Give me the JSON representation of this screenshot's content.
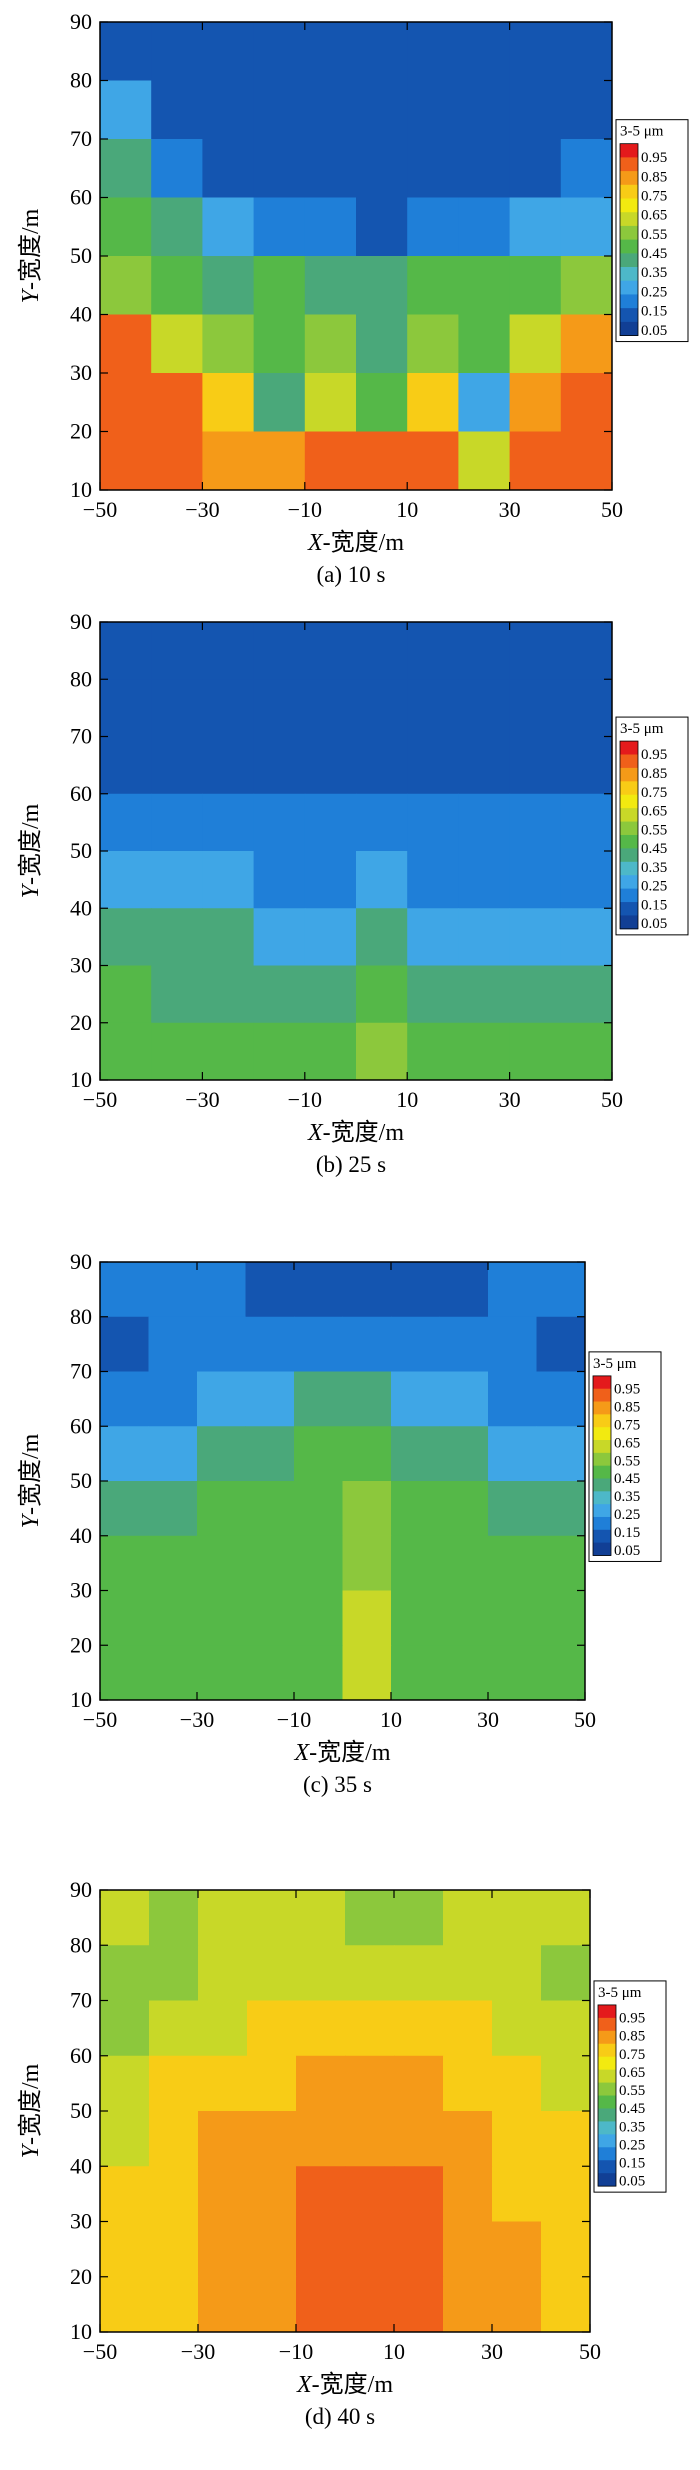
{
  "colorscale": {
    "title": "3-5 μm",
    "levels": [
      0.95,
      0.85,
      0.75,
      0.65,
      0.55,
      0.45,
      0.35,
      0.25,
      0.15,
      0.05
    ],
    "colors": [
      "#e41a1c",
      "#f0601a",
      "#f59a18",
      "#f8cc16",
      "#f2ea10",
      "#c8d828",
      "#8cc83c",
      "#55b848",
      "#4aa87a",
      "#4db8c8",
      "#3fa6e6",
      "#1f7fd8",
      "#1455b0",
      "#113f95"
    ]
  },
  "chart_data": [
    {
      "type": "heatmap",
      "caption": "(a) 10 s",
      "time_s": 10,
      "xlabel": "X-宽度/m",
      "ylabel": "Y-宽度/m",
      "xlim": [
        -50,
        50
      ],
      "ylim": [
        10,
        90
      ],
      "xticks": [
        "-50",
        "-30",
        "-10",
        "10",
        "30",
        "50"
      ],
      "yticks": [
        "10",
        "20",
        "30",
        "40",
        "50",
        "60",
        "70",
        "80",
        "90"
      ],
      "x_centers": [
        -45,
        -35,
        -25,
        -15,
        -5,
        5,
        15,
        25,
        35,
        45
      ],
      "y_centers": [
        85,
        75,
        65,
        55,
        45,
        35,
        25,
        15
      ],
      "values": [
        [
          0.05,
          0.05,
          0.05,
          0.05,
          0.05,
          0.05,
          0.05,
          0.05,
          0.05,
          0.05
        ],
        [
          0.25,
          0.05,
          0.05,
          0.05,
          0.05,
          0.05,
          0.05,
          0.05,
          0.05,
          0.05
        ],
        [
          0.35,
          0.15,
          0.05,
          0.05,
          0.05,
          0.05,
          0.05,
          0.05,
          0.05,
          0.15
        ],
        [
          0.45,
          0.35,
          0.25,
          0.15,
          0.15,
          0.05,
          0.15,
          0.15,
          0.25,
          0.25
        ],
        [
          0.55,
          0.45,
          0.35,
          0.45,
          0.35,
          0.35,
          0.45,
          0.45,
          0.45,
          0.55
        ],
        [
          0.95,
          0.65,
          0.55,
          0.45,
          0.55,
          0.35,
          0.55,
          0.45,
          0.65,
          0.85
        ],
        [
          0.95,
          0.95,
          0.75,
          0.35,
          0.65,
          0.45,
          0.75,
          0.25,
          0.85,
          0.95
        ],
        [
          0.95,
          0.95,
          0.85,
          0.85,
          0.95,
          0.95,
          0.95,
          0.65,
          0.95,
          0.95
        ]
      ]
    },
    {
      "type": "heatmap",
      "caption": "(b) 25 s",
      "time_s": 25,
      "xlabel": "X-宽度/m",
      "ylabel": "Y-宽度/m",
      "xlim": [
        -50,
        50
      ],
      "ylim": [
        10,
        90
      ],
      "xticks": [
        "-50",
        "-30",
        "-10",
        "10",
        "30",
        "50"
      ],
      "yticks": [
        "10",
        "20",
        "30",
        "40",
        "50",
        "60",
        "70",
        "80",
        "90"
      ],
      "x_centers": [
        -45,
        -35,
        -25,
        -15,
        -5,
        5,
        15,
        25,
        35,
        45
      ],
      "y_centers": [
        85,
        75,
        65,
        55,
        45,
        35,
        25,
        15
      ],
      "values": [
        [
          0.05,
          0.05,
          0.05,
          0.05,
          0.05,
          0.05,
          0.05,
          0.05,
          0.05,
          0.05
        ],
        [
          0.05,
          0.05,
          0.05,
          0.05,
          0.05,
          0.05,
          0.05,
          0.05,
          0.05,
          0.05
        ],
        [
          0.05,
          0.05,
          0.05,
          0.05,
          0.05,
          0.05,
          0.05,
          0.05,
          0.05,
          0.05
        ],
        [
          0.15,
          0.15,
          0.15,
          0.15,
          0.15,
          0.15,
          0.15,
          0.15,
          0.15,
          0.15
        ],
        [
          0.25,
          0.25,
          0.25,
          0.15,
          0.15,
          0.25,
          0.15,
          0.15,
          0.15,
          0.15
        ],
        [
          0.35,
          0.35,
          0.35,
          0.25,
          0.25,
          0.35,
          0.25,
          0.25,
          0.25,
          0.25
        ],
        [
          0.45,
          0.35,
          0.35,
          0.35,
          0.35,
          0.45,
          0.35,
          0.35,
          0.35,
          0.35
        ],
        [
          0.45,
          0.45,
          0.45,
          0.45,
          0.45,
          0.55,
          0.45,
          0.45,
          0.45,
          0.45
        ]
      ]
    },
    {
      "type": "heatmap",
      "caption": "(c) 35 s",
      "time_s": 35,
      "xlabel": "X-宽度/m",
      "ylabel": "Y-宽度/m",
      "xlim": [
        -50,
        50
      ],
      "ylim": [
        10,
        90
      ],
      "xticks": [
        "-50",
        "-30",
        "-10",
        "10",
        "30",
        "50"
      ],
      "yticks": [
        "10",
        "20",
        "30",
        "40",
        "50",
        "60",
        "70",
        "80",
        "90"
      ],
      "x_centers": [
        -45,
        -35,
        -25,
        -15,
        -5,
        5,
        15,
        25,
        35,
        45
      ],
      "y_centers": [
        85,
        75,
        65,
        55,
        45,
        35,
        25,
        15
      ],
      "values": [
        [
          0.15,
          0.15,
          0.15,
          0.05,
          0.05,
          0.05,
          0.05,
          0.05,
          0.15,
          0.15
        ],
        [
          0.05,
          0.15,
          0.15,
          0.15,
          0.15,
          0.15,
          0.15,
          0.15,
          0.15,
          0.05
        ],
        [
          0.15,
          0.15,
          0.25,
          0.25,
          0.35,
          0.35,
          0.25,
          0.25,
          0.15,
          0.15
        ],
        [
          0.25,
          0.25,
          0.35,
          0.35,
          0.45,
          0.45,
          0.35,
          0.35,
          0.25,
          0.25
        ],
        [
          0.35,
          0.35,
          0.45,
          0.45,
          0.45,
          0.55,
          0.45,
          0.45,
          0.35,
          0.35
        ],
        [
          0.45,
          0.45,
          0.45,
          0.45,
          0.45,
          0.55,
          0.45,
          0.45,
          0.45,
          0.45
        ],
        [
          0.45,
          0.45,
          0.45,
          0.45,
          0.45,
          0.65,
          0.45,
          0.45,
          0.45,
          0.45
        ],
        [
          0.45,
          0.45,
          0.45,
          0.45,
          0.45,
          0.65,
          0.45,
          0.45,
          0.45,
          0.45
        ]
      ]
    },
    {
      "type": "heatmap",
      "caption": "(d) 40 s",
      "time_s": 40,
      "xlabel": "X-宽度/m",
      "ylabel": "Y-宽度/m",
      "xlim": [
        -50,
        50
      ],
      "ylim": [
        10,
        90
      ],
      "xticks": [
        "-50",
        "-30",
        "-10",
        "10",
        "30",
        "50"
      ],
      "yticks": [
        "10",
        "20",
        "30",
        "40",
        "50",
        "60",
        "70",
        "80",
        "90"
      ],
      "x_centers": [
        -45,
        -35,
        -25,
        -15,
        -5,
        5,
        15,
        25,
        35,
        45
      ],
      "y_centers": [
        85,
        75,
        65,
        55,
        45,
        35,
        25,
        15
      ],
      "values": [
        [
          0.65,
          0.55,
          0.65,
          0.65,
          0.65,
          0.55,
          0.55,
          0.65,
          0.65,
          0.65
        ],
        [
          0.55,
          0.55,
          0.65,
          0.65,
          0.65,
          0.65,
          0.65,
          0.65,
          0.65,
          0.55
        ],
        [
          0.55,
          0.65,
          0.65,
          0.75,
          0.75,
          0.75,
          0.75,
          0.75,
          0.65,
          0.65
        ],
        [
          0.65,
          0.75,
          0.75,
          0.75,
          0.85,
          0.85,
          0.85,
          0.75,
          0.75,
          0.65
        ],
        [
          0.65,
          0.75,
          0.85,
          0.85,
          0.85,
          0.85,
          0.85,
          0.85,
          0.75,
          0.75
        ],
        [
          0.75,
          0.75,
          0.85,
          0.85,
          0.95,
          0.95,
          0.95,
          0.85,
          0.75,
          0.75
        ],
        [
          0.75,
          0.75,
          0.85,
          0.85,
          0.95,
          0.95,
          0.95,
          0.85,
          0.85,
          0.75
        ],
        [
          0.75,
          0.75,
          0.85,
          0.85,
          0.95,
          0.95,
          0.95,
          0.85,
          0.85,
          0.75
        ]
      ]
    }
  ]
}
